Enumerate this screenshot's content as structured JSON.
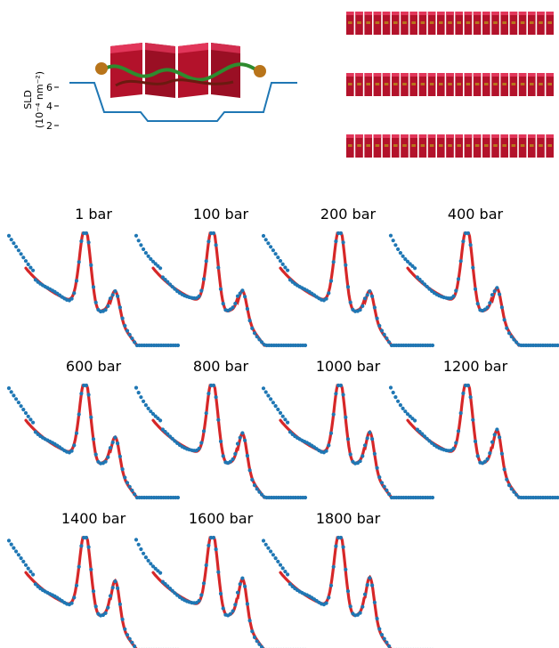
{
  "sld": {
    "ylabel_line1": "SLD",
    "ylabel_line2": "(10⁻⁴ nm⁻²)",
    "yticks": [
      "6",
      "4",
      "2"
    ],
    "profile_color": "#1f77b4"
  },
  "colors": {
    "data_points": "#1f77b4",
    "fit_line": "#d62728",
    "block_red": "#b3122b",
    "headgroup": "#b8741a",
    "chain_green": "#2e8b2e"
  },
  "chart_data": {
    "type": "scatter",
    "panels": [
      {
        "title": "1 bar",
        "peak2": 0.33
      },
      {
        "title": "100 bar",
        "peak2": 0.33
      },
      {
        "title": "200 bar",
        "peak2": 0.33
      },
      {
        "title": "400 bar",
        "peak2": 0.36
      },
      {
        "title": "600 bar",
        "peak2": 0.4
      },
      {
        "title": "800 bar",
        "peak2": 0.44
      },
      {
        "title": "1000 bar",
        "peak2": 0.46
      },
      {
        "title": "1200 bar",
        "peak2": 0.48
      },
      {
        "title": "1400 bar",
        "peak2": 0.5
      },
      {
        "title": "1600 bar",
        "peak2": 0.52
      },
      {
        "title": "1800 bar",
        "peak2": 0.54
      }
    ]
  }
}
